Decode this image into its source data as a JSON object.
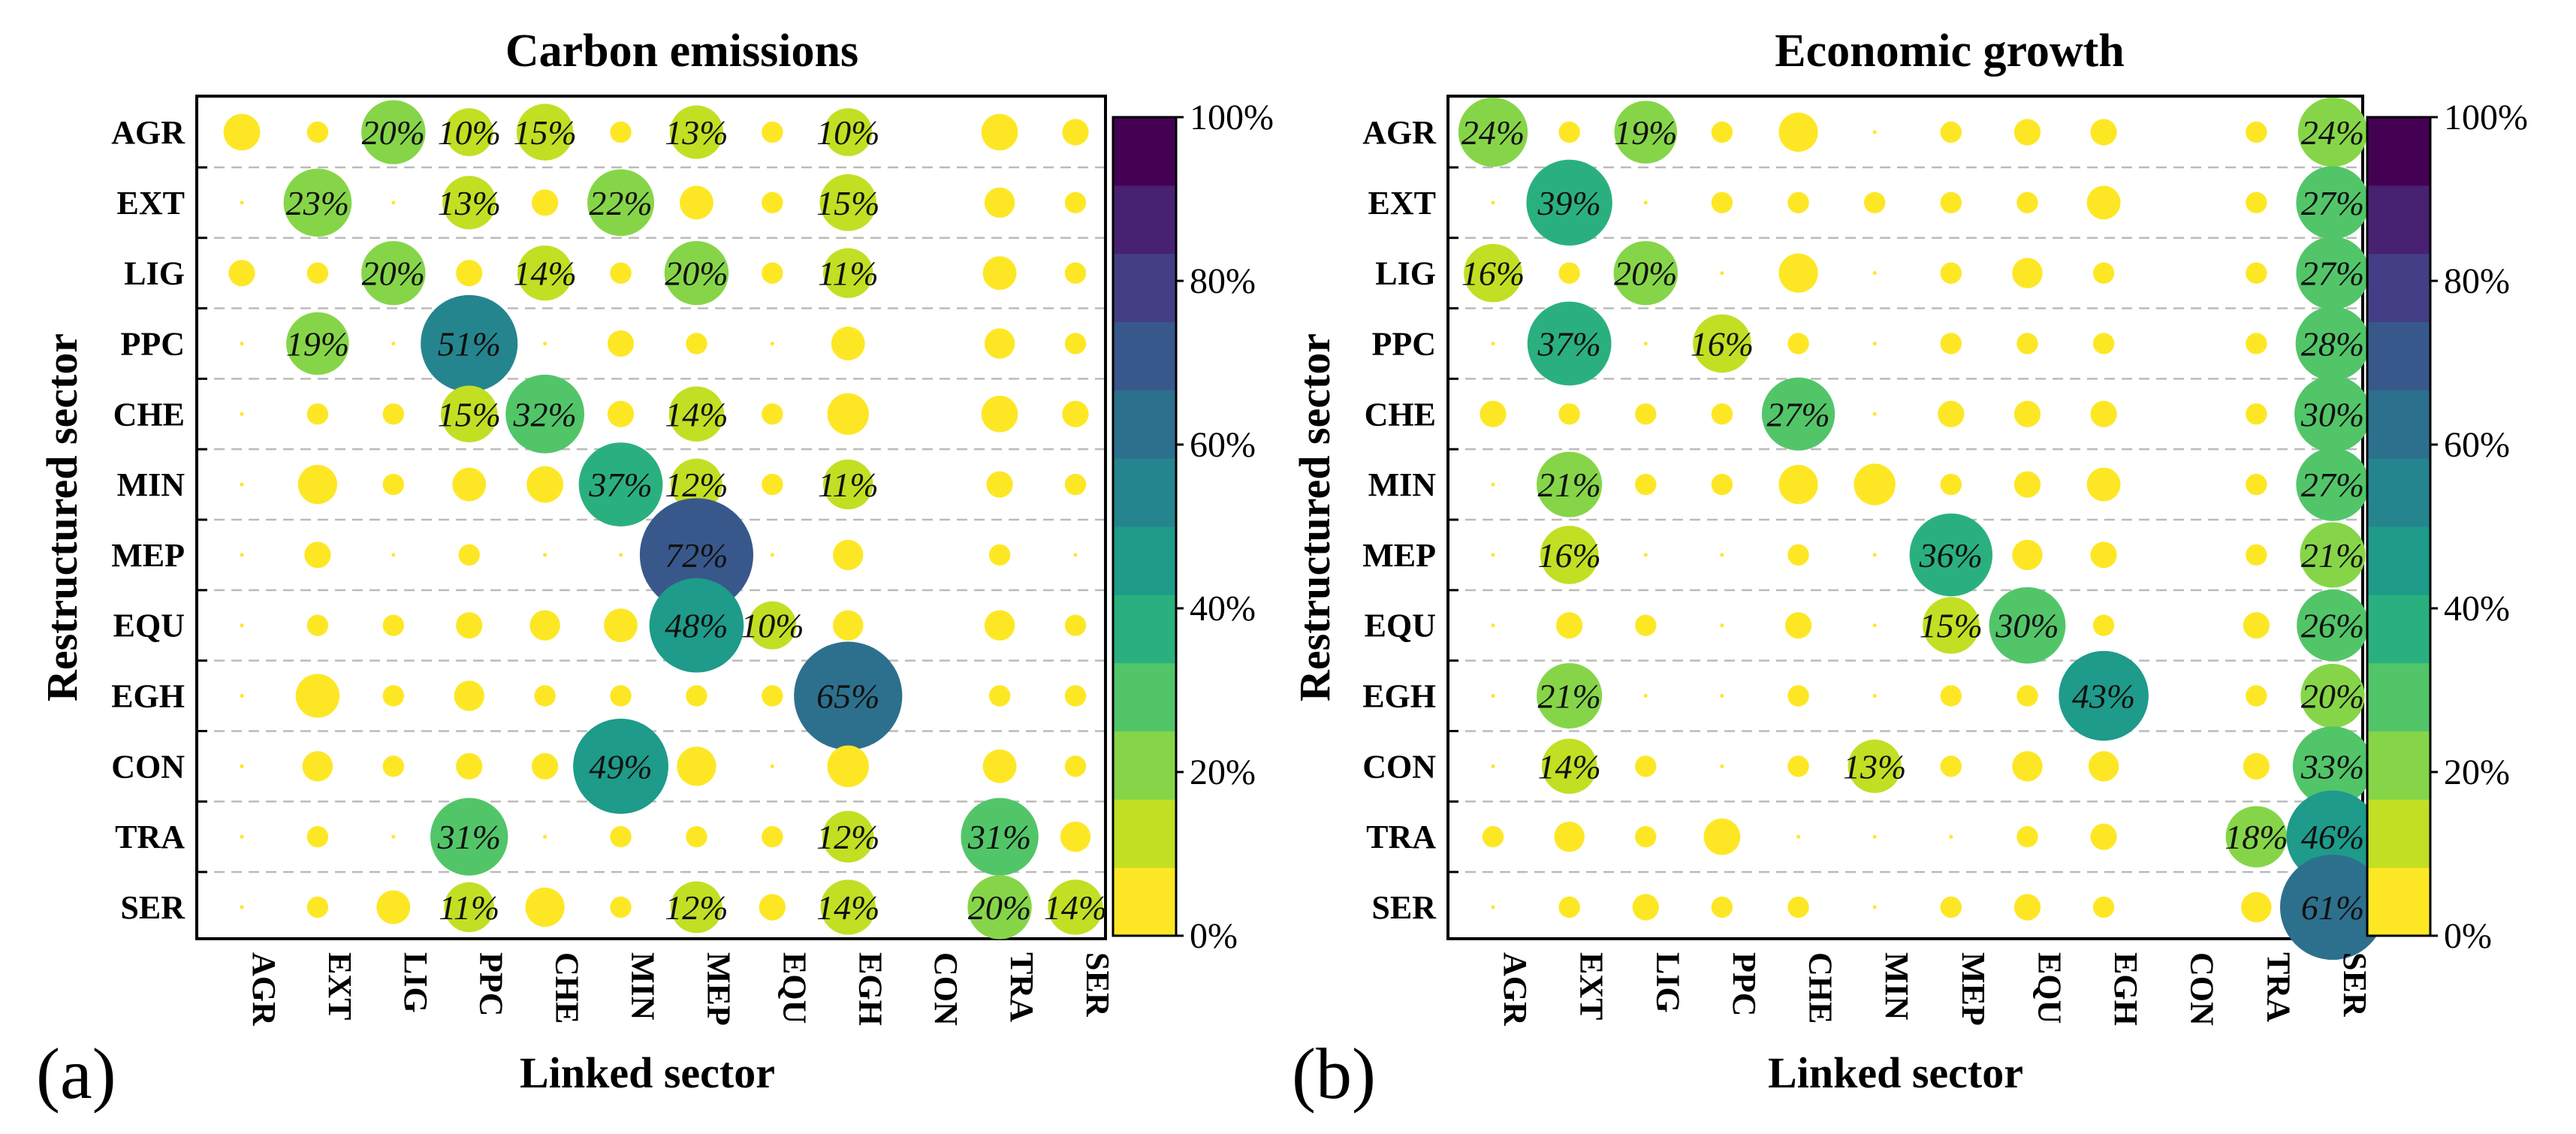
{
  "figure": {
    "panel_a_letter": "(a)",
    "panel_b_letter": "(b)",
    "colorbar_ticks": [
      "0%",
      "20%",
      "40%",
      "60%",
      "80%",
      "100%"
    ],
    "colormap": [
      "#fde725",
      "#c2df23",
      "#86d549",
      "#52c569",
      "#2ab07f",
      "#1e9b8a",
      "#25858e",
      "#2d708e",
      "#38588c",
      "#433e85",
      "#482173",
      "#440154"
    ]
  },
  "chart_data": [
    {
      "type": "scatter",
      "title": "Carbon emissions",
      "xlabel": "Linked sector",
      "ylabel": "Restructured sector",
      "categories_x": [
        "AGR",
        "EXT",
        "LIG",
        "PPC",
        "CHE",
        "MIN",
        "MEP",
        "EQU",
        "EGH",
        "CON",
        "TRA",
        "SER"
      ],
      "categories_y": [
        "AGR",
        "EXT",
        "LIG",
        "PPC",
        "CHE",
        "MIN",
        "MEP",
        "EQU",
        "EGH",
        "CON",
        "TRA",
        "SER"
      ],
      "value_unit": "%",
      "color_range": [
        0,
        100
      ],
      "values": [
        [
          5,
          1,
          20,
          10,
          15,
          1,
          13,
          1,
          10,
          0,
          5,
          2
        ],
        [
          0,
          23,
          0,
          13,
          2,
          22,
          4,
          1,
          15,
          0,
          3,
          1
        ],
        [
          2,
          1,
          20,
          2,
          14,
          1,
          20,
          1,
          11,
          0,
          4,
          1
        ],
        [
          0,
          19,
          0,
          51,
          0,
          2,
          1,
          0,
          4,
          0,
          3,
          1
        ],
        [
          0,
          1,
          1,
          15,
          32,
          2,
          14,
          1,
          7,
          0,
          5,
          2
        ],
        [
          0,
          6,
          1,
          4,
          5,
          37,
          12,
          1,
          11,
          0,
          2,
          1
        ],
        [
          0,
          2,
          0,
          1,
          0,
          0,
          72,
          0,
          3,
          0,
          1,
          0
        ],
        [
          0,
          1,
          1,
          2,
          3,
          4,
          48,
          10,
          3,
          0,
          3,
          1
        ],
        [
          0,
          8,
          1,
          3,
          1,
          1,
          1,
          1,
          65,
          0,
          1,
          1
        ],
        [
          0,
          3,
          1,
          2,
          2,
          49,
          6,
          0,
          7,
          0,
          4,
          1
        ],
        [
          0,
          1,
          0,
          31,
          0,
          1,
          1,
          1,
          12,
          0,
          31,
          3
        ],
        [
          0,
          1,
          4,
          11,
          6,
          1,
          12,
          2,
          14,
          0,
          20,
          14
        ]
      ]
    },
    {
      "type": "scatter",
      "title": "Economic growth",
      "xlabel": "Linked sector",
      "ylabel": "Restructured sector",
      "categories_x": [
        "AGR",
        "EXT",
        "LIG",
        "PPC",
        "CHE",
        "MIN",
        "MEP",
        "EQU",
        "EGH",
        "CON",
        "TRA",
        "SER"
      ],
      "categories_y": [
        "AGR",
        "EXT",
        "LIG",
        "PPC",
        "CHE",
        "MIN",
        "MEP",
        "EQU",
        "EGH",
        "CON",
        "TRA",
        "SER"
      ],
      "value_unit": "%",
      "color_range": [
        0,
        100
      ],
      "values": [
        [
          24,
          1,
          19,
          1,
          6,
          0,
          1,
          2,
          2,
          0,
          1,
          24
        ],
        [
          0,
          39,
          0,
          1,
          1,
          1,
          1,
          1,
          4,
          0,
          1,
          27
        ],
        [
          16,
          1,
          20,
          0,
          6,
          0,
          1,
          3,
          1,
          0,
          1,
          27
        ],
        [
          0,
          37,
          0,
          16,
          1,
          0,
          1,
          1,
          1,
          0,
          1,
          28
        ],
        [
          2,
          1,
          1,
          1,
          27,
          0,
          2,
          2,
          2,
          0,
          1,
          30
        ],
        [
          0,
          21,
          1,
          1,
          6,
          7,
          1,
          2,
          4,
          0,
          1,
          27
        ],
        [
          0,
          16,
          0,
          0,
          1,
          0,
          36,
          3,
          2,
          0,
          1,
          21
        ],
        [
          0,
          2,
          1,
          0,
          2,
          0,
          15,
          30,
          1,
          0,
          2,
          26
        ],
        [
          0,
          21,
          0,
          0,
          1,
          0,
          1,
          1,
          43,
          0,
          1,
          20
        ],
        [
          0,
          14,
          1,
          0,
          1,
          13,
          1,
          3,
          3,
          0,
          2,
          33
        ],
        [
          1,
          3,
          1,
          5,
          0,
          0,
          0,
          1,
          2,
          0,
          18,
          46
        ],
        [
          0,
          1,
          2,
          1,
          1,
          0,
          1,
          2,
          1,
          0,
          3,
          61
        ]
      ]
    }
  ]
}
